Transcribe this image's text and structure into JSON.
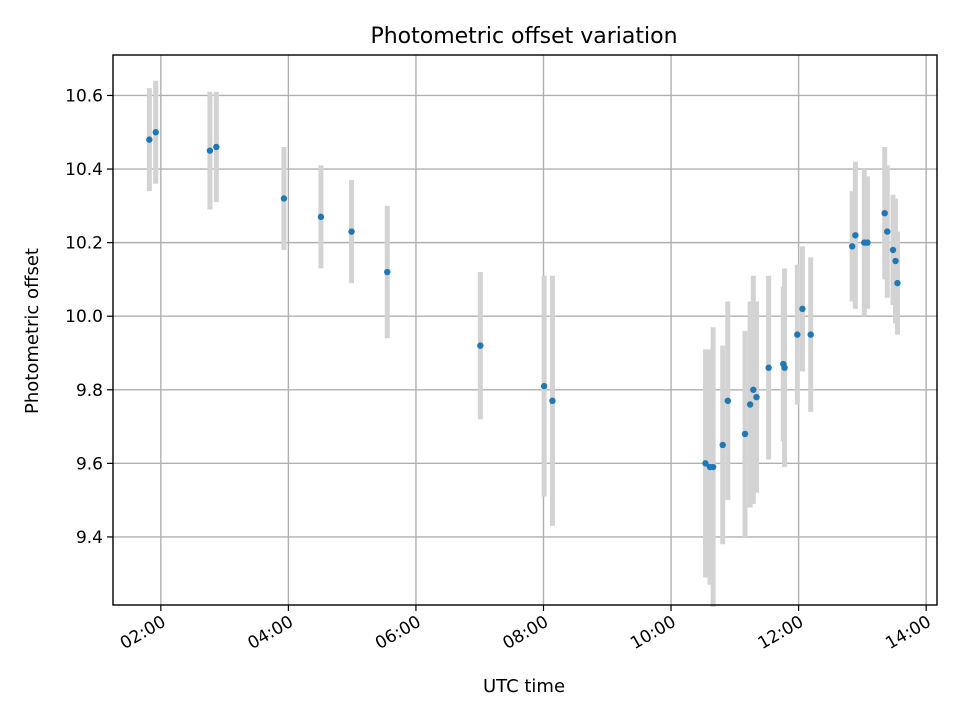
{
  "chart_data": {
    "type": "scatter",
    "title": "Photometric offset variation",
    "xlabel": "UTC time",
    "ylabel": "Photometric offset",
    "x_unit": "hours",
    "xlim": [
      1.25,
      14.17
    ],
    "ylim": [
      9.215,
      10.71
    ],
    "x_ticks": [
      {
        "value": 2,
        "label": "02:00"
      },
      {
        "value": 4,
        "label": "04:00"
      },
      {
        "value": 6,
        "label": "06:00"
      },
      {
        "value": 8,
        "label": "08:00"
      },
      {
        "value": 10,
        "label": "10:00"
      },
      {
        "value": 12,
        "label": "12:00"
      },
      {
        "value": 14,
        "label": "14:00"
      }
    ],
    "y_ticks": [
      {
        "value": 9.4,
        "label": "9.4"
      },
      {
        "value": 9.6,
        "label": "9.6"
      },
      {
        "value": 9.8,
        "label": "9.8"
      },
      {
        "value": 10.0,
        "label": "10.0"
      },
      {
        "value": 10.2,
        "label": "10.2"
      },
      {
        "value": 10.4,
        "label": "10.4"
      },
      {
        "value": 10.6,
        "label": "10.6"
      }
    ],
    "grid": true,
    "marker_color": "#1f77b4",
    "errorbar_color": "#d3d3d3",
    "points": [
      {
        "x": 1.82,
        "y": 10.48,
        "err": 0.14
      },
      {
        "x": 1.92,
        "y": 10.5,
        "err": 0.14
      },
      {
        "x": 2.77,
        "y": 10.45,
        "err": 0.16
      },
      {
        "x": 2.87,
        "y": 10.46,
        "err": 0.15
      },
      {
        "x": 3.93,
        "y": 10.32,
        "err": 0.14
      },
      {
        "x": 4.51,
        "y": 10.27,
        "err": 0.14
      },
      {
        "x": 4.99,
        "y": 10.23,
        "err": 0.14
      },
      {
        "x": 5.55,
        "y": 10.12,
        "err": 0.18
      },
      {
        "x": 7.01,
        "y": 9.92,
        "err": 0.2
      },
      {
        "x": 8.01,
        "y": 9.81,
        "err": 0.3
      },
      {
        "x": 8.14,
        "y": 9.77,
        "err": 0.34
      },
      {
        "x": 10.54,
        "y": 9.6,
        "err": 0.31
      },
      {
        "x": 10.61,
        "y": 9.59,
        "err": 0.32
      },
      {
        "x": 10.66,
        "y": 9.59,
        "err": 0.38
      },
      {
        "x": 10.81,
        "y": 9.65,
        "err": 0.27
      },
      {
        "x": 10.89,
        "y": 9.77,
        "err": 0.27
      },
      {
        "x": 11.16,
        "y": 9.68,
        "err": 0.28
      },
      {
        "x": 11.24,
        "y": 9.76,
        "err": 0.28
      },
      {
        "x": 11.29,
        "y": 9.8,
        "err": 0.31
      },
      {
        "x": 11.34,
        "y": 9.78,
        "err": 0.26
      },
      {
        "x": 11.53,
        "y": 9.86,
        "err": 0.25
      },
      {
        "x": 11.76,
        "y": 9.87,
        "err": 0.21
      },
      {
        "x": 11.78,
        "y": 9.86,
        "err": 0.27
      },
      {
        "x": 11.98,
        "y": 9.95,
        "err": 0.19
      },
      {
        "x": 12.06,
        "y": 10.02,
        "err": 0.17
      },
      {
        "x": 12.19,
        "y": 9.95,
        "err": 0.21
      },
      {
        "x": 12.84,
        "y": 10.19,
        "err": 0.15
      },
      {
        "x": 12.89,
        "y": 10.22,
        "err": 0.2
      },
      {
        "x": 13.03,
        "y": 10.2,
        "err": 0.2
      },
      {
        "x": 13.08,
        "y": 10.2,
        "err": 0.18
      },
      {
        "x": 13.35,
        "y": 10.28,
        "err": 0.18
      },
      {
        "x": 13.39,
        "y": 10.23,
        "err": 0.18
      },
      {
        "x": 13.48,
        "y": 10.18,
        "err": 0.15
      },
      {
        "x": 13.52,
        "y": 10.15,
        "err": 0.17
      },
      {
        "x": 13.55,
        "y": 10.09,
        "err": 0.14
      }
    ]
  }
}
